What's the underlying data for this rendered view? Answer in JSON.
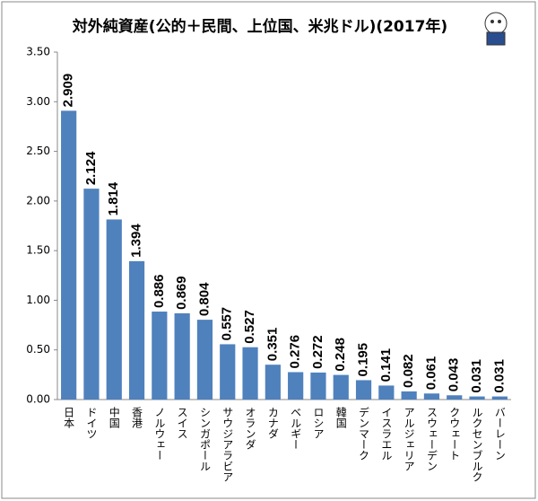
{
  "chart_data": {
    "type": "bar",
    "title": "対外純資産(公的＋民間、上位国、米兆ドル)(2017年)",
    "categories": [
      "日本",
      "ドイツ",
      "中国",
      "香港",
      "ノルウェー",
      "スイス",
      "シンガポール",
      "サウジアラビア",
      "オランダ",
      "カナダ",
      "ベルギー",
      "ロシア",
      "韓国",
      "デンマーク",
      "イスラエル",
      "アルジェリア",
      "スウェーデン",
      "クウェート",
      "ルクセンブルク",
      "バーレーン"
    ],
    "values": [
      2.909,
      2.124,
      1.814,
      1.394,
      0.886,
      0.869,
      0.804,
      0.557,
      0.527,
      0.351,
      0.276,
      0.272,
      0.248,
      0.195,
      0.141,
      0.082,
      0.061,
      0.043,
      0.031,
      0.031
    ],
    "color": "#4f81bd",
    "ylim": [
      0,
      3.5
    ],
    "yticks": [
      {
        "value": 0,
        "label": "0.00"
      },
      {
        "value": 0.5,
        "label": "0.50"
      },
      {
        "value": 1,
        "label": "1.00"
      },
      {
        "value": 1.5,
        "label": "1.50"
      },
      {
        "value": 2,
        "label": "2.00"
      },
      {
        "value": 2.5,
        "label": "2.50"
      },
      {
        "value": 3,
        "label": "3.00"
      },
      {
        "value": 3.5,
        "label": "3.50"
      }
    ],
    "grid": false
  }
}
